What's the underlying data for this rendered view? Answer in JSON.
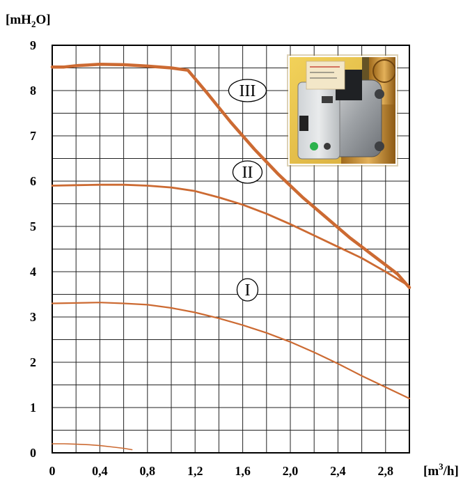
{
  "chart_data": {
    "type": "line",
    "y_unit": {
      "prefix": "[mH",
      "sub": "2",
      "suffix": "O]"
    },
    "x_unit": {
      "prefix": "[m",
      "sup": "3",
      "suffix": "/h]"
    },
    "xlim": [
      0,
      3.0
    ],
    "ylim": [
      0,
      9
    ],
    "grid": true,
    "x_ticks": [
      "0",
      "0,4",
      "0,8",
      "1,2",
      "1,6",
      "2,0",
      "2,4",
      "2,8"
    ],
    "x_tick_values": [
      0,
      0.4,
      0.8,
      1.2,
      1.6,
      2.0,
      2.4,
      2.8
    ],
    "y_ticks": [
      "0",
      "1",
      "2",
      "3",
      "4",
      "5",
      "6",
      "7",
      "8",
      "9"
    ],
    "y_tick_values": [
      0,
      1,
      2,
      3,
      4,
      5,
      6,
      7,
      8,
      9
    ],
    "series": [
      {
        "name": "III",
        "color": "#cc6a32",
        "width": 4.5,
        "points": [
          [
            0,
            8.52
          ],
          [
            0.1,
            8.52
          ],
          [
            0.2,
            8.55
          ],
          [
            0.4,
            8.58
          ],
          [
            0.6,
            8.57
          ],
          [
            0.8,
            8.54
          ],
          [
            1.0,
            8.5
          ],
          [
            1.14,
            8.45
          ],
          [
            1.3,
            7.95
          ],
          [
            1.5,
            7.3
          ],
          [
            1.7,
            6.7
          ],
          [
            1.9,
            6.15
          ],
          [
            2.1,
            5.65
          ],
          [
            2.3,
            5.2
          ],
          [
            2.5,
            4.75
          ],
          [
            2.7,
            4.35
          ],
          [
            2.9,
            3.95
          ],
          [
            3.0,
            3.65
          ]
        ],
        "label_at": [
          1.64,
          8.0
        ]
      },
      {
        "name": "II",
        "color": "#cc6a32",
        "width": 2.8,
        "points": [
          [
            0,
            5.9
          ],
          [
            0.2,
            5.91
          ],
          [
            0.4,
            5.92
          ],
          [
            0.6,
            5.92
          ],
          [
            0.8,
            5.9
          ],
          [
            1.0,
            5.86
          ],
          [
            1.2,
            5.78
          ],
          [
            1.4,
            5.64
          ],
          [
            1.6,
            5.48
          ],
          [
            1.8,
            5.28
          ],
          [
            2.0,
            5.05
          ],
          [
            2.2,
            4.8
          ],
          [
            2.4,
            4.55
          ],
          [
            2.6,
            4.3
          ],
          [
            2.8,
            4.0
          ],
          [
            3.0,
            3.68
          ]
        ],
        "label_at": [
          1.64,
          6.2
        ]
      },
      {
        "name": "I",
        "color": "#cc6a32",
        "width": 2.2,
        "points": [
          [
            0,
            3.3
          ],
          [
            0.2,
            3.31
          ],
          [
            0.4,
            3.32
          ],
          [
            0.6,
            3.3
          ],
          [
            0.8,
            3.27
          ],
          [
            1.0,
            3.2
          ],
          [
            1.2,
            3.1
          ],
          [
            1.4,
            2.97
          ],
          [
            1.6,
            2.82
          ],
          [
            1.8,
            2.65
          ],
          [
            2.0,
            2.45
          ],
          [
            2.2,
            2.22
          ],
          [
            2.4,
            1.97
          ],
          [
            2.6,
            1.7
          ],
          [
            2.8,
            1.45
          ],
          [
            3.0,
            1.2
          ]
        ],
        "label_at": [
          1.64,
          3.6
        ]
      },
      {
        "name": "",
        "color": "#cc6a32",
        "width": 1.6,
        "points": [
          [
            0,
            0.2
          ],
          [
            0.1,
            0.2
          ],
          [
            0.2,
            0.19
          ],
          [
            0.3,
            0.18
          ],
          [
            0.4,
            0.16
          ],
          [
            0.5,
            0.13
          ],
          [
            0.6,
            0.1
          ],
          [
            0.67,
            0.07
          ]
        ]
      }
    ],
    "inset": {
      "content": "photo of a circulator pump with control panel"
    }
  }
}
